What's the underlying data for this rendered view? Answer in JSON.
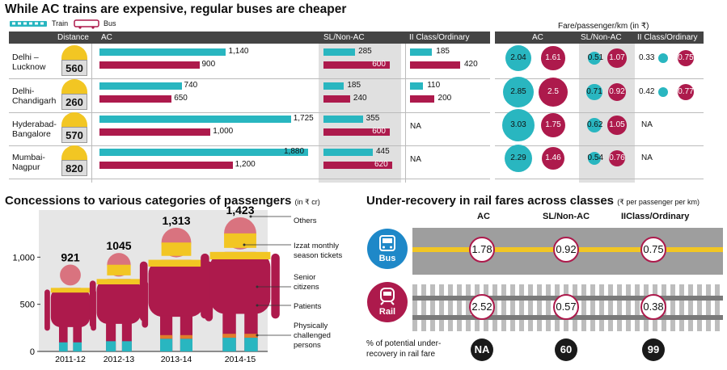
{
  "top": {
    "title": "While AC trains are expensive, regular buses are cheaper",
    "legend": {
      "train": "Train",
      "bus": "Bus"
    },
    "headers": {
      "distance": "Distance",
      "ac": "AC",
      "sl": "SL/Non-AC",
      "ord": "II Class/Ordinary"
    },
    "right_title": "Fare/passenger/km (in ₹)",
    "right_headers": {
      "ac": "AC",
      "sl": "SL/Non-AC",
      "ord": "II Class/Ordinary"
    },
    "na": "NA",
    "rows": [
      {
        "city1": "Delhi –",
        "city2": "Lucknow",
        "distance": "560",
        "ac_train": "1,140",
        "ac_bus": "900",
        "sl_train": "285",
        "sl_bus": "600",
        "ord_train": "185",
        "ord_bus": "420",
        "f_ac_t": "2.04",
        "f_ac_b": "1.61",
        "f_sl_t": "0.51",
        "f_sl_b": "1.07",
        "f_o_t": "0.33",
        "f_o_b": "0.75"
      },
      {
        "city1": "Delhi-",
        "city2": "Chandigarh",
        "distance": "260",
        "ac_train": "740",
        "ac_bus": "650",
        "sl_train": "185",
        "sl_bus": "240",
        "ord_train": "110",
        "ord_bus": "200",
        "f_ac_t": "2.85",
        "f_ac_b": "2.5",
        "f_sl_t": "0.71",
        "f_sl_b": "0.92",
        "f_o_t": "0.42",
        "f_o_b": "0.77"
      },
      {
        "city1": "Hyderabad-",
        "city2": "Bangalore",
        "distance": "570",
        "ac_train": "1,725",
        "ac_bus": "1,000",
        "sl_train": "355",
        "sl_bus": "600",
        "ord_train": "NA",
        "ord_bus": "",
        "f_ac_t": "3.03",
        "f_ac_b": "1.75",
        "f_sl_t": "0.62",
        "f_sl_b": "1.05",
        "f_o_t": "NA",
        "f_o_b": ""
      },
      {
        "city1": "Mumbai-",
        "city2": "Nagpur",
        "distance": "820",
        "ac_train": "1,880",
        "ac_bus": "1,200",
        "sl_train": "445",
        "sl_bus": "620",
        "ord_train": "NA",
        "ord_bus": "",
        "f_ac_t": "2.29",
        "f_ac_b": "1.46",
        "f_sl_t": "0.54",
        "f_sl_b": "0.76",
        "f_o_t": "NA",
        "f_o_b": ""
      }
    ]
  },
  "concessions": {
    "title": "Concessions to various categories of passengers",
    "unit": "(in ₹ cr)",
    "legend": [
      "Others",
      "Izzat monthly",
      "season tickets",
      "Senior",
      "citizens",
      "Patients",
      "Physically",
      "challenged",
      "persons"
    ]
  },
  "under": {
    "title": "Under-recovery in rail fares across classes",
    "unit": "(₹ per passenger per km)",
    "cols": [
      "AC",
      "SL/Non-AC",
      "IIClass/Ordinary"
    ],
    "bus_label": "Bus",
    "rail_label": "Rail",
    "pct_label1": "% of potential under-",
    "pct_label2": "recovery in rail fare"
  },
  "chart_data": [
    {
      "type": "bar",
      "title": "While AC trains are expensive, regular buses are cheaper",
      "categories": [
        "Delhi – Lucknow",
        "Delhi-Chandigarh",
        "Hyderabad-Bangalore",
        "Mumbai-Nagpur"
      ],
      "distance_km": [
        560,
        260,
        570,
        820
      ],
      "series": [
        {
          "name": "AC Train",
          "values": [
            1140,
            740,
            1725,
            1880
          ]
        },
        {
          "name": "AC Bus",
          "values": [
            900,
            650,
            1000,
            1200
          ]
        },
        {
          "name": "SL Train",
          "values": [
            285,
            185,
            355,
            445
          ]
        },
        {
          "name": "Non-AC Bus",
          "values": [
            600,
            240,
            600,
            620
          ]
        },
        {
          "name": "II Class Train",
          "values": [
            185,
            110,
            null,
            null
          ]
        },
        {
          "name": "Ordinary Bus",
          "values": [
            420,
            200,
            null,
            null
          ]
        }
      ]
    },
    {
      "type": "scatter",
      "title": "Fare/passenger/km (in ₹)",
      "categories": [
        "Delhi – Lucknow",
        "Delhi-Chandigarh",
        "Hyderabad-Bangalore",
        "Mumbai-Nagpur"
      ],
      "series": [
        {
          "name": "AC Train",
          "values": [
            2.04,
            2.85,
            3.03,
            2.29
          ]
        },
        {
          "name": "AC Bus",
          "values": [
            1.61,
            2.5,
            1.75,
            1.46
          ]
        },
        {
          "name": "SL Train",
          "values": [
            0.51,
            0.71,
            0.62,
            0.54
          ]
        },
        {
          "name": "Non-AC Bus",
          "values": [
            1.07,
            0.92,
            1.05,
            0.76
          ]
        },
        {
          "name": "II Class Train",
          "values": [
            0.33,
            0.42,
            null,
            null
          ]
        },
        {
          "name": "Ordinary Bus",
          "values": [
            0.75,
            0.77,
            null,
            null
          ]
        }
      ]
    },
    {
      "type": "bar",
      "title": "Concessions to various categories of passengers (in ₹ cr)",
      "categories": [
        "2011-12",
        "2012-13",
        "2013-14",
        "2014-15"
      ],
      "values": [
        921,
        1045,
        1313,
        1423
      ],
      "value_labels": [
        "921",
        "1045",
        "1,313",
        "1,423"
      ],
      "ylim": [
        0,
        1500
      ],
      "yticks": [
        0,
        500,
        1000
      ],
      "ytick_labels": [
        "0",
        "500",
        "1,000"
      ],
      "components": [
        "Others",
        "Izzat monthly season tickets",
        "Senior citizens",
        "Patients",
        "Physically challenged persons"
      ],
      "colors": {
        "others": "#d9737f",
        "izzat": "#f2c623",
        "senior": "#ad1a4c",
        "patients": "#ad1a4c",
        "physical": "#29b6c0",
        "orange": "#e07c2c"
      }
    },
    {
      "type": "table",
      "title": "Under-recovery in rail fares across classes (₹ per passenger per km)",
      "columns": [
        "AC",
        "SL/Non-AC",
        "IIClass/Ordinary"
      ],
      "bus": [
        "1.78",
        "0.92",
        "0.75"
      ],
      "rail": [
        "2.52",
        "0.57",
        "0.38"
      ],
      "pct_under_recovery": [
        "NA",
        "60",
        "99"
      ]
    }
  ]
}
